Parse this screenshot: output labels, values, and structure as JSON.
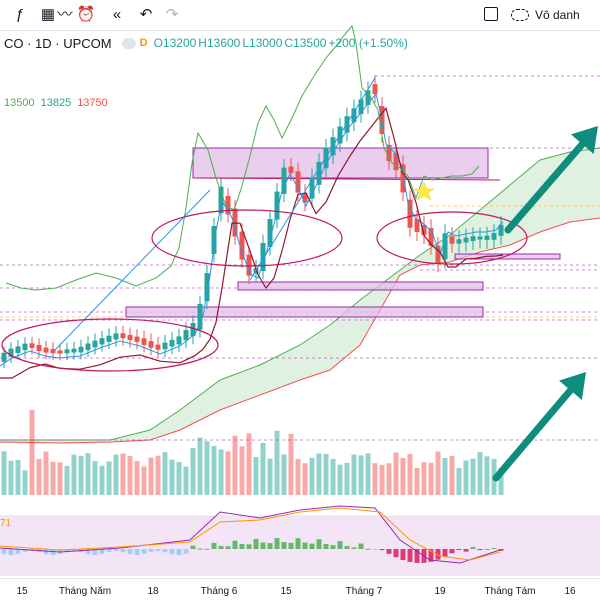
{
  "toolbar": {
    "icons": [
      "indicators-icon",
      "templates-icon",
      "alert-icon",
      "replay-icon",
      "undo-icon",
      "redo-icon",
      "layout-icon",
      "cloud-icon"
    ],
    "cloud_label": "Vô danh"
  },
  "legend": {
    "symbol": "CO · 1D · UPCOM",
    "interval_badge": "D",
    "open_label": "O",
    "open": "13200",
    "high_label": "H",
    "high": "13600",
    "low_label": "L",
    "low": "13000",
    "close_label": "C",
    "close": "13500",
    "change": "+200 (+1.50%)"
  },
  "indicator_values": [
    "13500",
    "13825",
    "13750"
  ],
  "macd_tag": "71",
  "colors": {
    "up": "#26a69a",
    "down": "#ef5350",
    "lagging": "#4caf50",
    "base": "#8b1a2c",
    "conversion": "#2196f3",
    "cloud_fill": "#c8e6c9",
    "zone_fill": "#e1bee7",
    "zone_border": "#9c27b0",
    "arrow": "#0e8d7c"
  },
  "x_axis": [
    "15",
    "Tháng Năm",
    "18",
    "Tháng 6",
    "15",
    "Tháng 7",
    "19",
    "Tháng Tám",
    "16"
  ],
  "chart_data": {
    "type": "candlestick",
    "title": "CO · 1D · UPCOM",
    "x": [
      "15",
      "Tháng Năm",
      "18",
      "Tháng 6",
      "15",
      "Tháng 7",
      "19",
      "Tháng Tám",
      "16"
    ],
    "last_bar": {
      "open": 13200,
      "high": 13600,
      "low": 13000,
      "close": 13500
    },
    "indicators": [
      "Ichimoku Cloud",
      "MACD"
    ],
    "grid": false
  }
}
